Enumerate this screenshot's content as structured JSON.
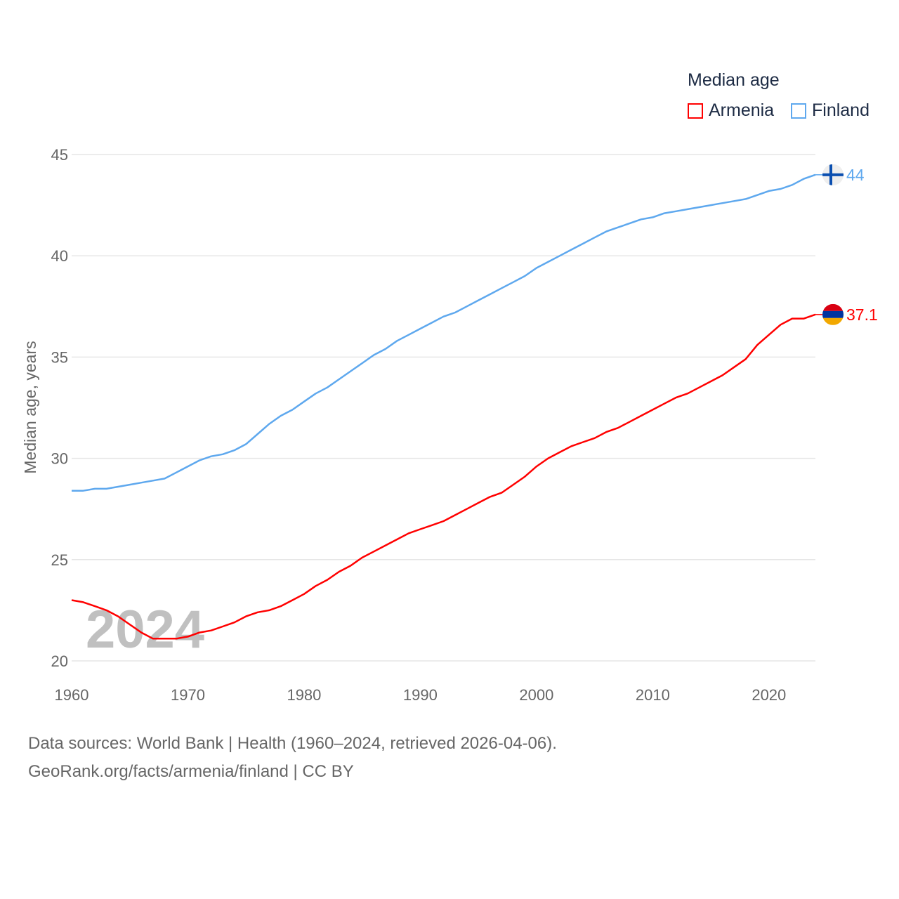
{
  "chart_data": {
    "type": "line",
    "title": "Median age",
    "ylabel": "Median age, years",
    "xlabel": "",
    "xlim": [
      1960,
      2024
    ],
    "ylim": [
      20,
      45
    ],
    "x_ticks": [
      "1960",
      "1970",
      "1980",
      "1990",
      "2000",
      "2010",
      "2020"
    ],
    "y_ticks": [
      "20",
      "25",
      "30",
      "35",
      "40",
      "45"
    ],
    "grid": true,
    "legend_placement": "top-right",
    "watermark_year": "2024",
    "x": [
      1960,
      1961,
      1962,
      1963,
      1964,
      1965,
      1966,
      1967,
      1968,
      1969,
      1970,
      1971,
      1972,
      1973,
      1974,
      1975,
      1976,
      1977,
      1978,
      1979,
      1980,
      1981,
      1982,
      1983,
      1984,
      1985,
      1986,
      1987,
      1988,
      1989,
      1990,
      1991,
      1992,
      1993,
      1994,
      1995,
      1996,
      1997,
      1998,
      1999,
      2000,
      2001,
      2002,
      2003,
      2004,
      2005,
      2006,
      2007,
      2008,
      2009,
      2010,
      2011,
      2012,
      2013,
      2014,
      2015,
      2016,
      2017,
      2018,
      2019,
      2020,
      2021,
      2022,
      2023,
      2024
    ],
    "series": [
      {
        "name": "Armenia",
        "color": "#ff0000",
        "end_label": "37.1",
        "values": [
          23.0,
          22.9,
          22.7,
          22.5,
          22.2,
          21.8,
          21.4,
          21.1,
          21.1,
          21.1,
          21.2,
          21.4,
          21.5,
          21.7,
          21.9,
          22.2,
          22.4,
          22.5,
          22.7,
          23.0,
          23.3,
          23.7,
          24.0,
          24.4,
          24.7,
          25.1,
          25.4,
          25.7,
          26.0,
          26.3,
          26.5,
          26.7,
          26.9,
          27.2,
          27.5,
          27.8,
          28.1,
          28.3,
          28.7,
          29.1,
          29.6,
          30.0,
          30.3,
          30.6,
          30.8,
          31.0,
          31.3,
          31.5,
          31.8,
          32.1,
          32.4,
          32.7,
          33.0,
          33.2,
          33.5,
          33.8,
          34.1,
          34.5,
          34.9,
          35.6,
          36.1,
          36.6,
          36.9,
          36.9,
          37.1
        ]
      },
      {
        "name": "Finland",
        "color": "#5ea8ee",
        "end_label": "44",
        "values": [
          28.4,
          28.4,
          28.5,
          28.5,
          28.6,
          28.7,
          28.8,
          28.9,
          29.0,
          29.3,
          29.6,
          29.9,
          30.1,
          30.2,
          30.4,
          30.7,
          31.2,
          31.7,
          32.1,
          32.4,
          32.8,
          33.2,
          33.5,
          33.9,
          34.3,
          34.7,
          35.1,
          35.4,
          35.8,
          36.1,
          36.4,
          36.7,
          37.0,
          37.2,
          37.5,
          37.8,
          38.1,
          38.4,
          38.7,
          39.0,
          39.4,
          39.7,
          40.0,
          40.3,
          40.6,
          40.9,
          41.2,
          41.4,
          41.6,
          41.8,
          41.9,
          42.1,
          42.2,
          42.3,
          42.4,
          42.5,
          42.6,
          42.7,
          42.8,
          43.0,
          43.2,
          43.3,
          43.5,
          43.8,
          44.0
        ]
      }
    ]
  },
  "footer": {
    "line1": "Data sources: World Bank | Health (1960–2024, retrieved 2026-04-06).",
    "line2": "GeoRank.org/facts/armenia/finland | CC BY"
  }
}
